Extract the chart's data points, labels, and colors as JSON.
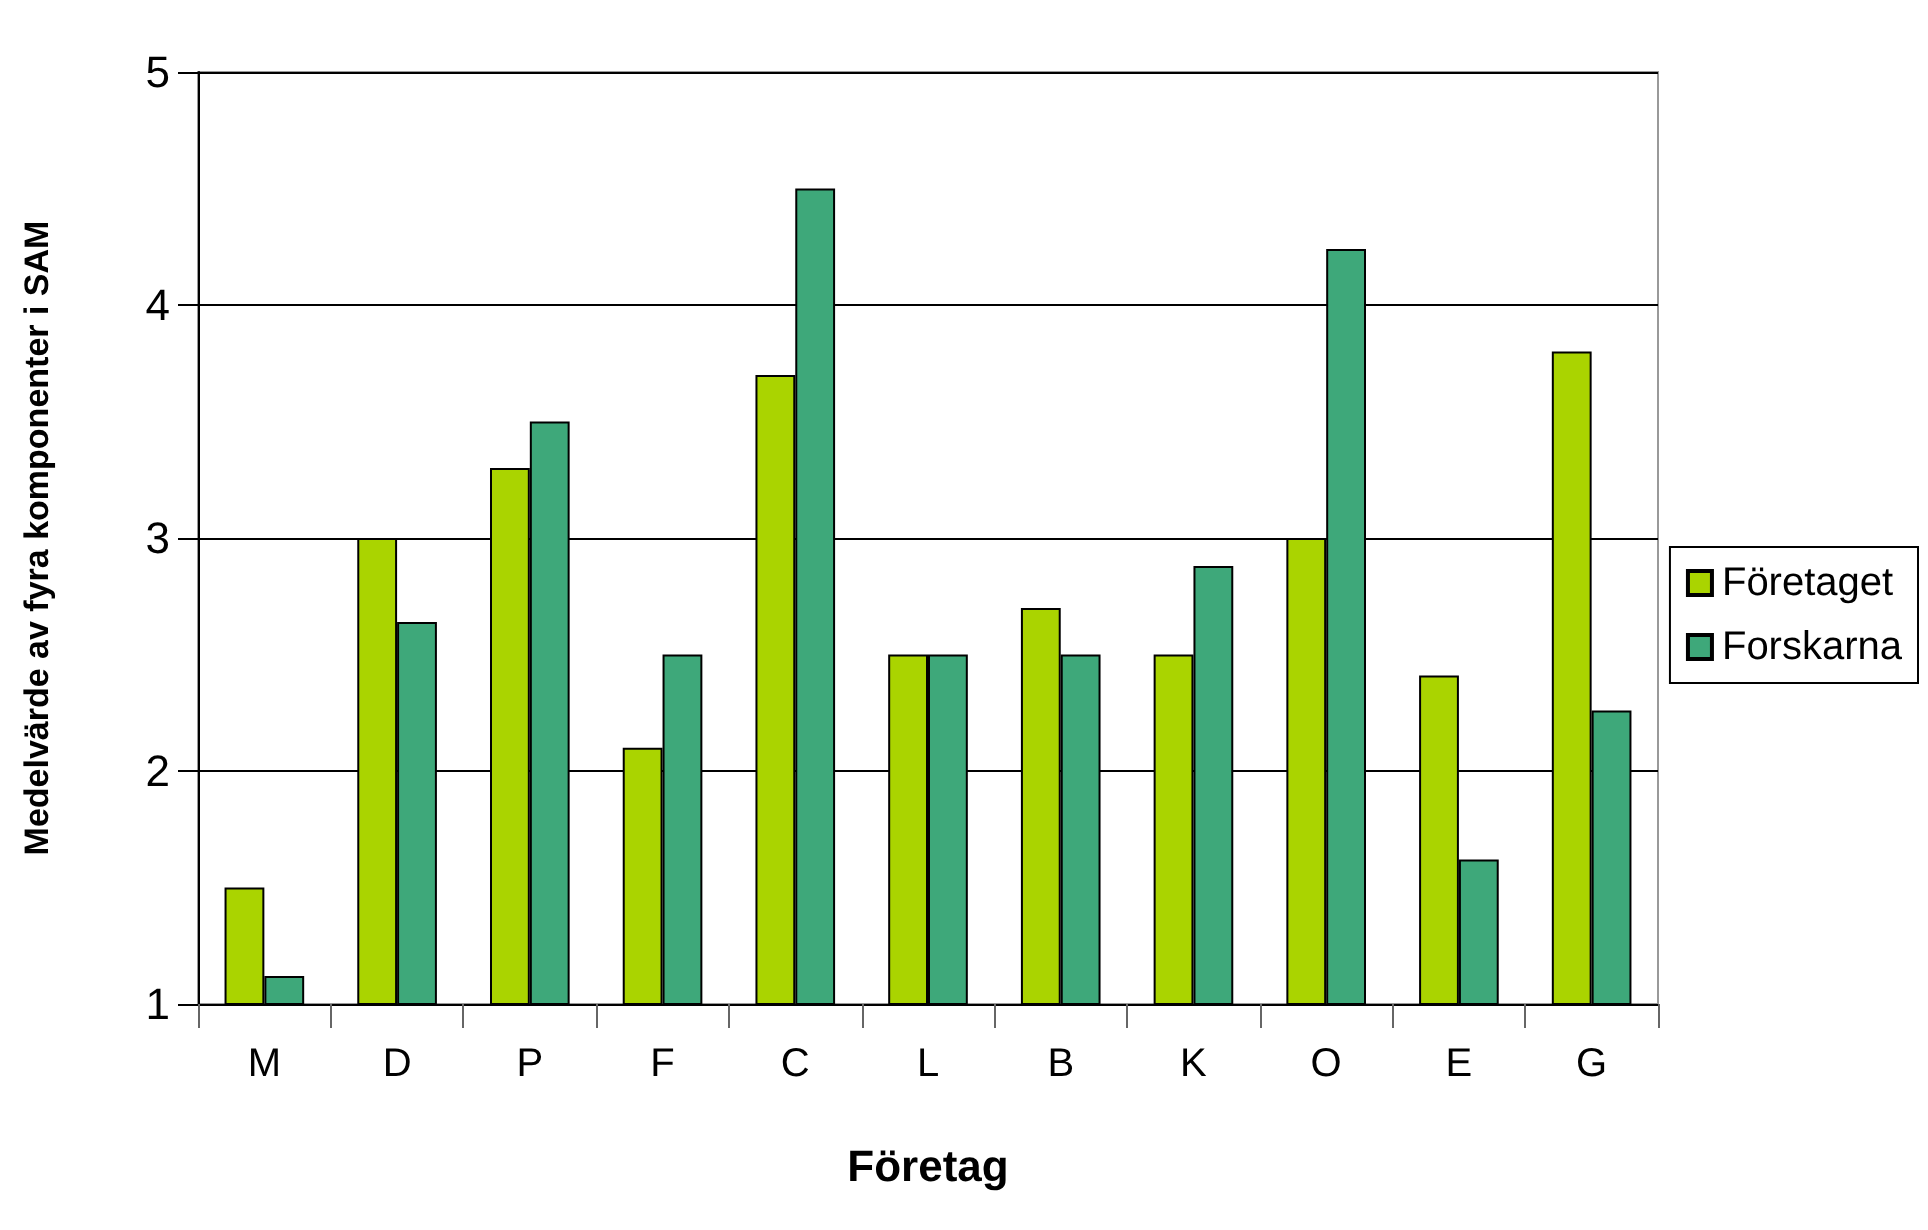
{
  "chart_data": {
    "type": "bar",
    "xlabel": "Företag",
    "ylabel": "Medelvärde av fyra komponenter i SAM",
    "categories": [
      "M",
      "D",
      "P",
      "F",
      "C",
      "L",
      "B",
      "K",
      "O",
      "E",
      "G"
    ],
    "series": [
      {
        "name": "Företaget",
        "color": "#aad400",
        "values": [
          1.5,
          3.0,
          3.3,
          2.1,
          3.7,
          2.5,
          2.7,
          2.5,
          3.0,
          2.41,
          3.8
        ]
      },
      {
        "name": "Forskarna",
        "color": "#3ea87a",
        "values": [
          1.12,
          2.64,
          3.5,
          2.5,
          4.5,
          2.5,
          2.5,
          2.88,
          4.24,
          1.62,
          2.26
        ]
      }
    ],
    "ylim": [
      1,
      5
    ],
    "yticks": [
      1,
      2,
      3,
      4,
      5
    ],
    "grid": "y",
    "legend": "right"
  }
}
